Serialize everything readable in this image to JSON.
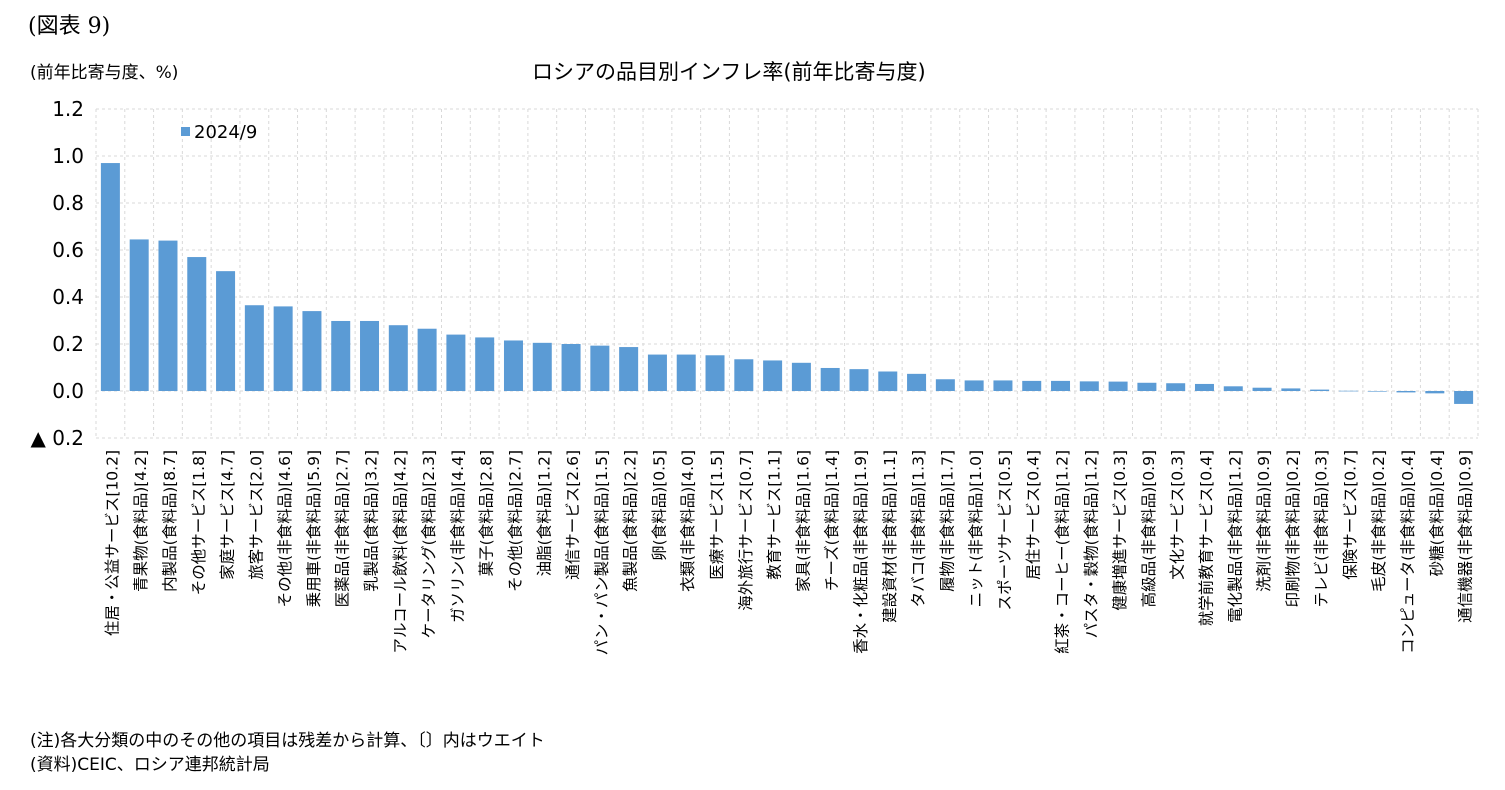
{
  "figure_label": "(図表 9)",
  "unit_label": "(前年比寄与度、%)",
  "notes": [
    "(注)各大分類の中のその他の項目は残差から計算、〔〕内はウエイト",
    "(資料)CEIC、ロシア連邦統計局"
  ],
  "colors": {
    "bar": "#5b9bd5",
    "grid": "#d9d9d9"
  },
  "chart_data": {
    "type": "bar",
    "title": "ロシアの品目別インフレ率(前年比寄与度)",
    "ylim": [
      -0.2,
      1.2
    ],
    "yticks": [
      1.2,
      1.0,
      0.8,
      0.6,
      0.4,
      0.2,
      0.0,
      -0.2
    ],
    "ytick_labels": [
      "1.2",
      "1.0",
      "0.8",
      "0.6",
      "0.4",
      "0.2",
      "0.0",
      "▲ 0.2"
    ],
    "grid": true,
    "legend_position": "top-left",
    "categories": [
      "住居・公益サービス[10.2]",
      "青果物(食料品)[4.2]",
      "内製品(食料品)[8.7]",
      "その他サービス[1.8]",
      "家庭サービス[4.7]",
      "旅客サービス[2.0]",
      "その他(非食料品)[4.6]",
      "乗用車(非食料品)[5.9]",
      "医薬品(非食料品)[2.7]",
      "乳製品(食料品)[3.2]",
      "アルコール飲料(食料品)[4.2]",
      "ケータリング(食料品)[2.3]",
      "ガソリン(非食料品)[4.4]",
      "菓子(食料品)[2.8]",
      "その他(食料品)[2.7]",
      "油脂(食料品)[1.2]",
      "通信サービス[2.6]",
      "パン・パン製品(食料品)[1.5]",
      "魚製品(食料品)[2.2]",
      "卵(食料品)[0.5]",
      "衣類(非食料品)[4.0]",
      "医療サービス[1.5]",
      "海外旅行サービス[0.7]",
      "教育サービス[1.1]",
      "家具(非食料品)[1.6]",
      "チーズ(食料品)[1.4]",
      "香水・化粧品(非食料品)[1.9]",
      "建設資材(非食料品)[1.1]",
      "タバコ(非食料品)[1.3]",
      "履物(非食料品)[1.7]",
      "ニット(非食料品)[1.0]",
      "スポーツサービス[0.5]",
      "居住サービス[0.4]",
      "紅茶・コーヒー(食料品)[1.2]",
      "パスタ・穀物(食料品)[1.2]",
      "健康増進サービス[0.3]",
      "高級品(非食料品)[0.9]",
      "文化サービス[0.3]",
      "就学前教育サービス[0.4]",
      "電化製品(非食料品)[1.2]",
      "洗剤(非食料品)[0.9]",
      "印刷物(非食料品)[0.2]",
      "テレビ(非食料品)[0.3]",
      "保険サービス[0.7]",
      "毛皮(非食料品)[0.2]",
      "コンピュータ(非食料品)[0.4]",
      "砂糖(食料品)[0.4]",
      "通信機器(非食料品)[0.9]"
    ],
    "series": [
      {
        "name": "2024/9",
        "values": [
          0.97,
          0.645,
          0.64,
          0.57,
          0.51,
          0.365,
          0.36,
          0.34,
          0.298,
          0.298,
          0.28,
          0.265,
          0.24,
          0.228,
          0.215,
          0.205,
          0.2,
          0.193,
          0.187,
          0.155,
          0.155,
          0.152,
          0.135,
          0.13,
          0.12,
          0.098,
          0.093,
          0.083,
          0.073,
          0.05,
          0.045,
          0.045,
          0.043,
          0.043,
          0.041,
          0.04,
          0.035,
          0.033,
          0.03,
          0.02,
          0.014,
          0.011,
          0.006,
          0.001,
          0.0,
          -0.006,
          -0.01,
          -0.055
        ]
      }
    ]
  }
}
